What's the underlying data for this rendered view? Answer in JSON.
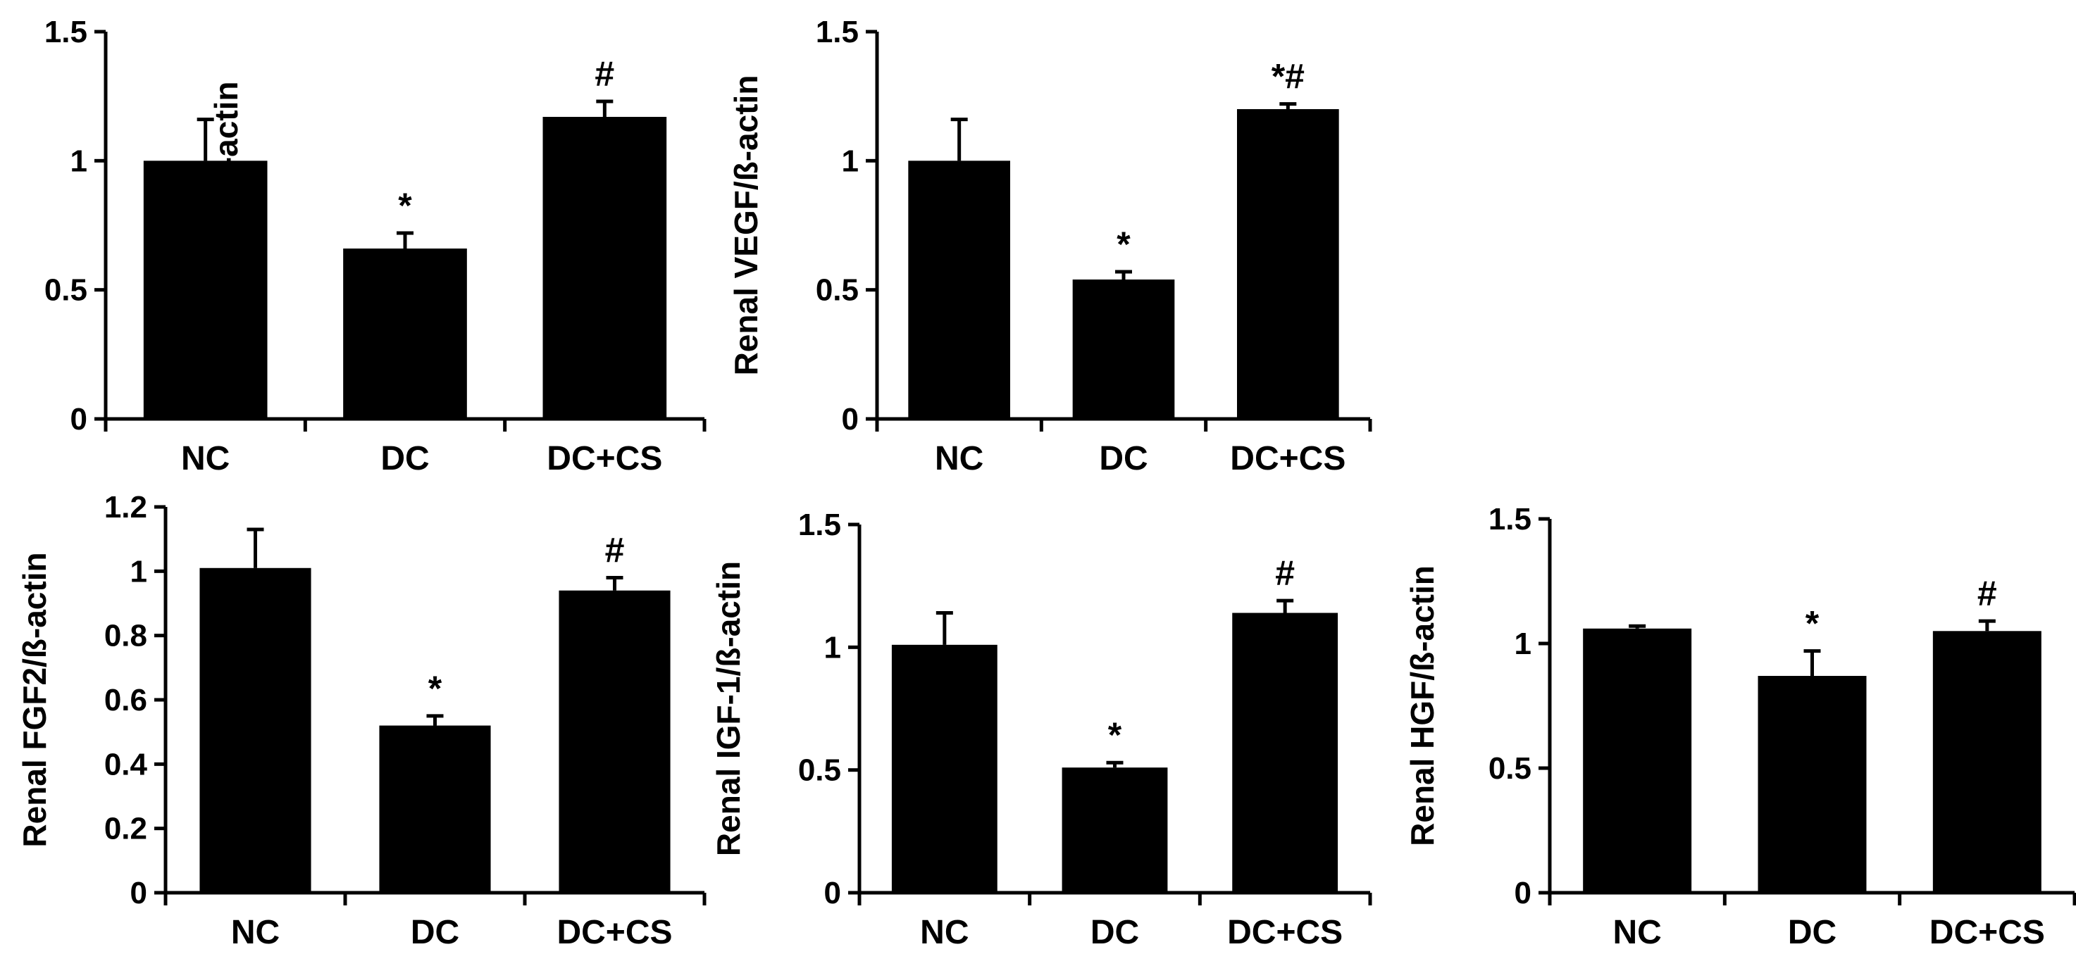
{
  "chart_data": [
    {
      "type": "bar",
      "ylabel": "Renal Pax2/ß-actin",
      "categories": [
        "NC",
        "DC",
        "DC+CS"
      ],
      "values": [
        1.0,
        0.66,
        1.17
      ],
      "errors": [
        0.16,
        0.06,
        0.06
      ],
      "annotations": [
        "",
        "*",
        "#"
      ],
      "ylim": [
        0,
        1.5
      ],
      "yticks": [
        0,
        0.5,
        1,
        1.5
      ],
      "ytick_labels": [
        "0",
        "0.5",
        "1",
        "1.5"
      ],
      "bar_color": "#000000"
    },
    {
      "type": "bar",
      "ylabel": "Renal VEGF/ß-actin",
      "categories": [
        "NC",
        "DC",
        "DC+CS"
      ],
      "values": [
        1.0,
        0.54,
        1.2
      ],
      "errors": [
        0.16,
        0.03,
        0.02
      ],
      "annotations": [
        "",
        "*",
        "*#"
      ],
      "ylim": [
        0,
        1.5
      ],
      "yticks": [
        0,
        0.5,
        1,
        1.5
      ],
      "ytick_labels": [
        "0",
        "0.5",
        "1",
        "1.5"
      ],
      "bar_color": "#000000"
    },
    {
      "type": "bar",
      "ylabel": "Renal FGF2/ß-actin",
      "categories": [
        "NC",
        "DC",
        "DC+CS"
      ],
      "values": [
        1.01,
        0.52,
        0.94
      ],
      "errors": [
        0.12,
        0.03,
        0.04
      ],
      "annotations": [
        "",
        "*",
        "#"
      ],
      "ylim": [
        0,
        1.2
      ],
      "yticks": [
        0,
        0.2,
        0.4,
        0.6,
        0.8,
        1,
        1.2
      ],
      "ytick_labels": [
        "0",
        "0.2",
        "0.4",
        "0.6",
        "0.8",
        "1",
        "1.2"
      ],
      "bar_color": "#000000"
    },
    {
      "type": "bar",
      "ylabel": "Renal IGF-1/ß-actin",
      "categories": [
        "NC",
        "DC",
        "DC+CS"
      ],
      "values": [
        1.01,
        0.51,
        1.14
      ],
      "errors": [
        0.13,
        0.02,
        0.05
      ],
      "annotations": [
        "",
        "*",
        "#"
      ],
      "ylim": [
        0,
        1.5
      ],
      "yticks": [
        0,
        0.5,
        1,
        1.5
      ],
      "ytick_labels": [
        "0",
        "0.5",
        "1",
        "1.5"
      ],
      "bar_color": "#000000"
    },
    {
      "type": "bar",
      "ylabel": "Renal HGF/ß-actin",
      "categories": [
        "NC",
        "DC",
        "DC+CS"
      ],
      "values": [
        1.06,
        0.87,
        1.05
      ],
      "errors": [
        0.01,
        0.1,
        0.04
      ],
      "annotations": [
        "",
        "*",
        "#"
      ],
      "ylim": [
        0,
        1.5
      ],
      "yticks": [
        0,
        0.5,
        1,
        1.5
      ],
      "ytick_labels": [
        "0",
        "0.5",
        "1",
        "1.5"
      ],
      "bar_color": "#000000"
    }
  ]
}
